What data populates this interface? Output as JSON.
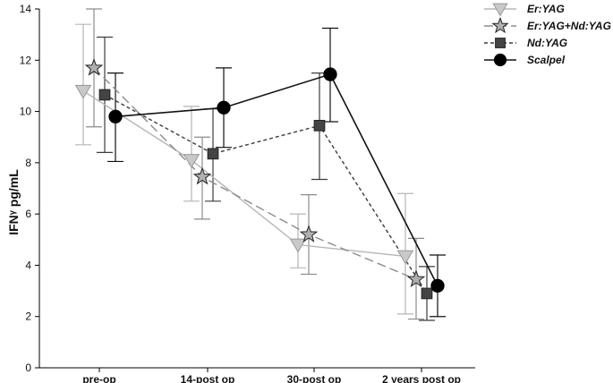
{
  "chart_data": {
    "type": "line",
    "categories": [
      "pre-op",
      "14-post op",
      "30-post op",
      "2 years post op"
    ],
    "ylabel": "IFNᵞ pg/mL",
    "xlabel": "",
    "ylim": [
      0,
      14
    ],
    "yticks": [
      0,
      2,
      4,
      6,
      8,
      10,
      12,
      14
    ],
    "grid": false,
    "legend_position": "right",
    "series": [
      {
        "name": "Er:YAG",
        "values": [
          10.8,
          8.1,
          4.8,
          4.35
        ],
        "err_low": [
          8.7,
          6.5,
          3.9,
          2.1
        ],
        "err_high": [
          13.4,
          10.2,
          6.0,
          6.8
        ],
        "color": "#b5b5b5",
        "marker": "triangle-down",
        "dash": "solid"
      },
      {
        "name": "Er:YAG+Nd:YAG",
        "values": [
          11.7,
          7.45,
          5.2,
          3.45
        ],
        "err_low": [
          9.4,
          5.8,
          3.65,
          1.9
        ],
        "err_high": [
          14.0,
          9.0,
          6.75,
          5.05
        ],
        "color": "#8c8c8c",
        "marker": "star",
        "dash": "long-dash"
      },
      {
        "name": "Nd:YAG",
        "values": [
          10.65,
          8.35,
          9.45,
          2.9
        ],
        "err_low": [
          8.4,
          6.5,
          7.35,
          1.85
        ],
        "err_high": [
          12.9,
          10.1,
          11.5,
          3.95
        ],
        "color": "#3c3c3c",
        "marker": "square",
        "dash": "short-dash"
      },
      {
        "name": "Scalpel",
        "values": [
          9.8,
          10.15,
          11.45,
          3.2
        ],
        "err_low": [
          8.05,
          8.6,
          9.6,
          2.0
        ],
        "err_high": [
          11.5,
          11.7,
          13.25,
          4.4
        ],
        "color": "#111111",
        "marker": "circle",
        "dash": "solid"
      }
    ]
  }
}
